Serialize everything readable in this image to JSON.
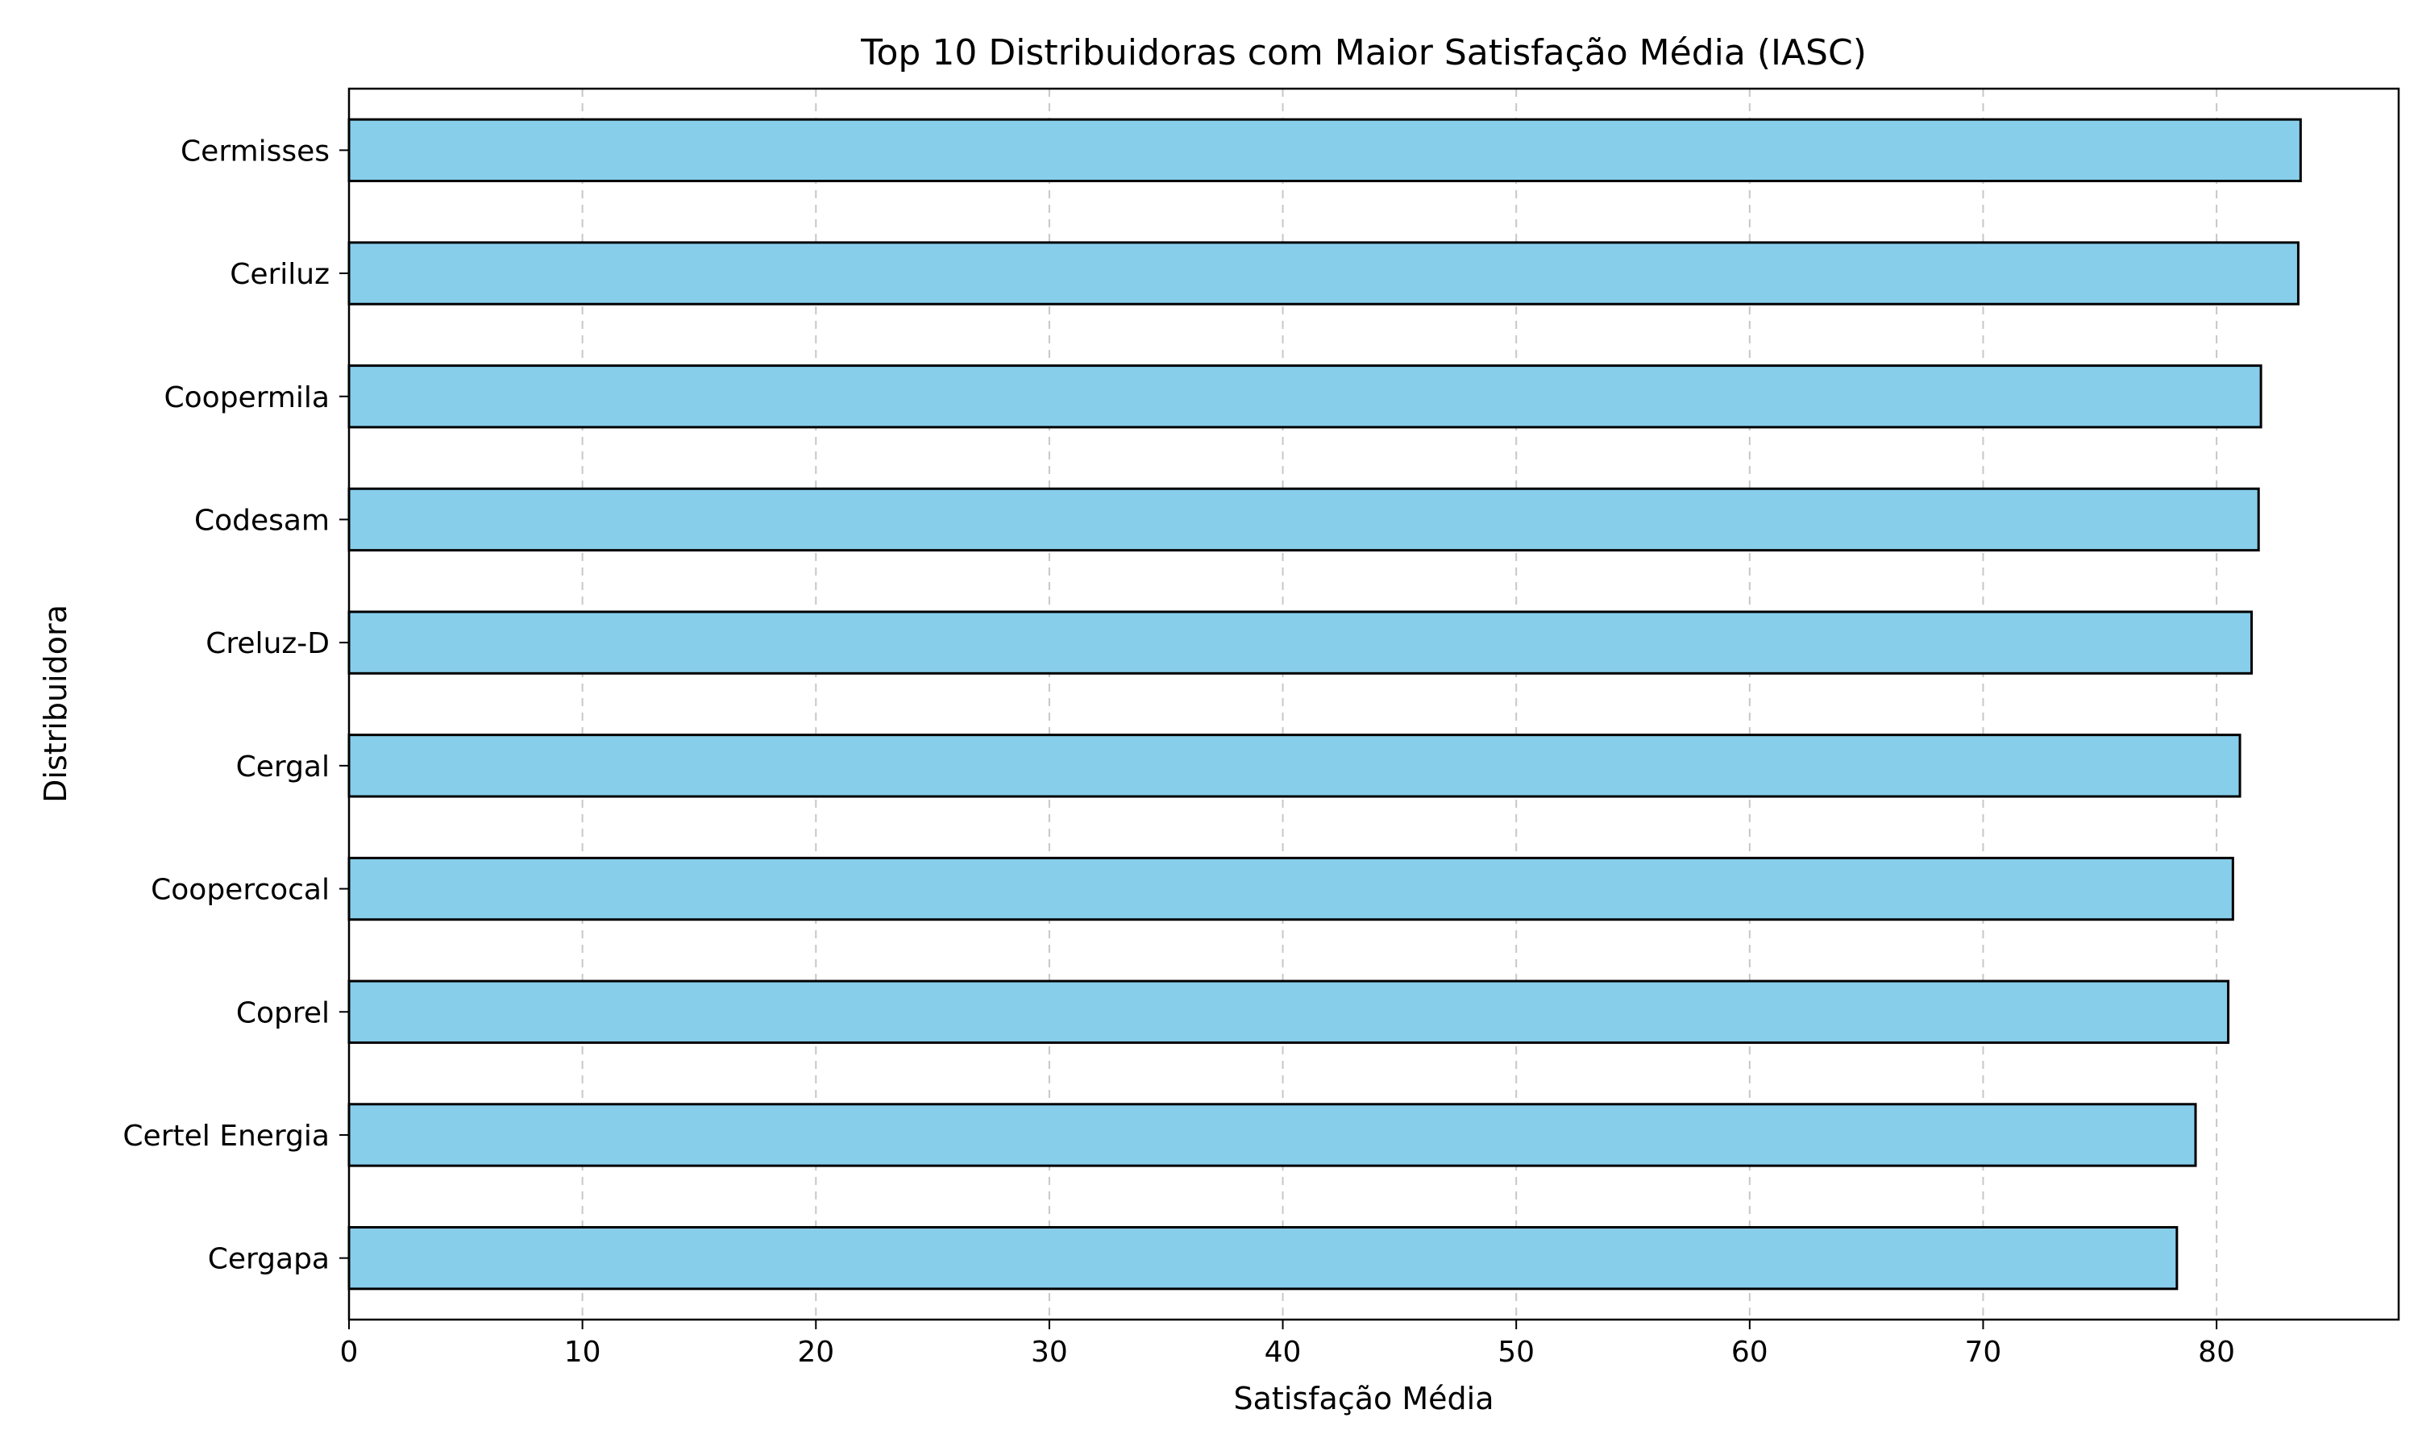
{
  "chart_data": {
    "type": "bar",
    "orientation": "horizontal",
    "title": "Top 10 Distribuidoras com Maior Satisfação Média (IASC)",
    "xlabel": "Satisfação Média",
    "ylabel": "Distribuidora",
    "categories": [
      "Cermisses",
      "Ceriluz",
      "Coopermila",
      "Codesam",
      "Creluz-D",
      "Cergal",
      "Coopercocal",
      "Coprel",
      "Certel Energia",
      "Cergapa"
    ],
    "values": [
      83.6,
      83.5,
      81.9,
      81.8,
      81.5,
      81.0,
      80.7,
      80.5,
      79.1,
      78.3
    ],
    "xlim": [
      0,
      87.8
    ],
    "xticks": [
      0,
      10,
      20,
      30,
      40,
      50,
      60,
      70,
      80
    ],
    "grid": "x-dashed",
    "bar_color": "#87CEEB",
    "edge_color": "#000000"
  }
}
